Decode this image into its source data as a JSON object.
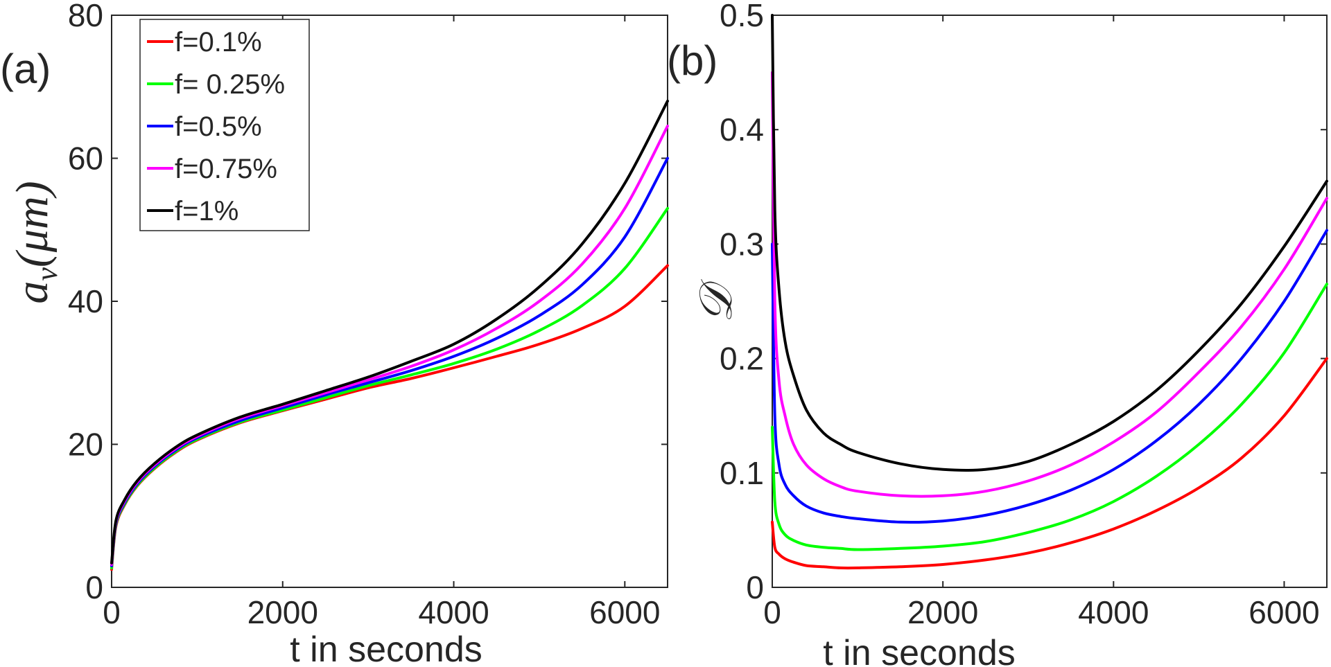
{
  "chart_data": [
    {
      "type": "line",
      "panel_label": "(a)",
      "xlabel": "t in seconds",
      "ylabel_symbol": "a",
      "ylabel_subscript": "v",
      "ylabel_unit": "(μm)",
      "xlim": [
        0,
        6500
      ],
      "ylim": [
        0,
        80
      ],
      "xticks": [
        0,
        2000,
        4000,
        6000
      ],
      "yticks": [
        0,
        20,
        40,
        60,
        80
      ],
      "xtick_labels": [
        "0",
        "2000",
        "4000",
        "6000"
      ],
      "ytick_labels": [
        "0",
        "20",
        "40",
        "60",
        "80"
      ],
      "legend": {
        "position": "top-left",
        "entries": [
          "f=0.1%",
          "f= 0.25%",
          "f=0.5%",
          "f=0.75%",
          "f=1%"
        ]
      },
      "x": [
        0,
        50,
        150,
        300,
        500,
        750,
        1000,
        1500,
        2000,
        2500,
        3000,
        3500,
        4000,
        4500,
        5000,
        5500,
        6000,
        6500
      ],
      "series": [
        {
          "name": "f=0.1%",
          "color": "#ff0000",
          "values": [
            2.5,
            8.5,
            11.5,
            14.2,
            16.6,
            18.9,
            20.6,
            23.0,
            24.7,
            26.3,
            27.9,
            29.2,
            30.7,
            32.3,
            34.0,
            36.2,
            39.3,
            45.0
          ]
        },
        {
          "name": "f= 0.25%",
          "color": "#00ff00",
          "values": [
            2.7,
            8.7,
            11.6,
            14.3,
            16.7,
            19.0,
            20.7,
            23.1,
            24.8,
            26.5,
            28.2,
            29.7,
            31.3,
            33.3,
            35.9,
            39.4,
            44.6,
            53.0
          ]
        },
        {
          "name": "f=0.5%",
          "color": "#0000ff",
          "values": [
            3.0,
            8.9,
            11.8,
            14.5,
            16.9,
            19.2,
            20.9,
            23.3,
            25.1,
            26.9,
            28.6,
            30.3,
            32.3,
            34.8,
            38.0,
            42.3,
            49.0,
            60.0
          ]
        },
        {
          "name": "f=0.75%",
          "color": "#ff00ff",
          "values": [
            3.2,
            9.1,
            12.0,
            14.7,
            17.1,
            19.4,
            21.1,
            23.6,
            25.4,
            27.2,
            29.0,
            30.9,
            33.2,
            36.2,
            40.0,
            45.2,
            53.0,
            64.5
          ]
        },
        {
          "name": "f=1%",
          "color": "#000000",
          "values": [
            3.4,
            9.3,
            12.2,
            14.9,
            17.3,
            19.6,
            21.3,
            23.8,
            25.6,
            27.5,
            29.4,
            31.6,
            34.0,
            37.5,
            42.0,
            48.0,
            56.5,
            68.0
          ]
        }
      ]
    },
    {
      "type": "line",
      "panel_label": "(b)",
      "xlabel": "t in seconds",
      "ylabel_symbol": "𝒟",
      "xlim": [
        0,
        6500
      ],
      "ylim": [
        0,
        0.5
      ],
      "xticks": [
        0,
        2000,
        4000,
        6000
      ],
      "yticks": [
        0,
        0.1,
        0.2,
        0.3,
        0.4,
        0.5
      ],
      "xtick_labels": [
        "0",
        "2000",
        "4000",
        "6000"
      ],
      "ytick_labels": [
        "0",
        "0.1",
        "0.2",
        "0.3",
        "0.4",
        "0.5"
      ],
      "x": [
        0,
        30,
        80,
        150,
        250,
        400,
        600,
        800,
        1000,
        1500,
        2000,
        2500,
        3000,
        3500,
        4000,
        4500,
        5000,
        5500,
        6000,
        6500
      ],
      "series": [
        {
          "name": "f=0.1%",
          "color": "#ff0000",
          "values": [
            0.057,
            0.035,
            0.029,
            0.025,
            0.022,
            0.019,
            0.018,
            0.017,
            0.017,
            0.018,
            0.02,
            0.024,
            0.03,
            0.039,
            0.051,
            0.067,
            0.087,
            0.113,
            0.15,
            0.2
          ]
        },
        {
          "name": "f= 0.25%",
          "color": "#00ff00",
          "values": [
            0.14,
            0.075,
            0.055,
            0.046,
            0.041,
            0.037,
            0.035,
            0.034,
            0.033,
            0.034,
            0.036,
            0.04,
            0.048,
            0.059,
            0.075,
            0.097,
            0.125,
            0.16,
            0.205,
            0.265
          ]
        },
        {
          "name": "f=0.5%",
          "color": "#0000ff",
          "values": [
            0.3,
            0.15,
            0.107,
            0.09,
            0.08,
            0.071,
            0.065,
            0.062,
            0.06,
            0.057,
            0.058,
            0.063,
            0.072,
            0.085,
            0.103,
            0.128,
            0.16,
            0.2,
            0.25,
            0.312
          ]
        },
        {
          "name": "f=0.75%",
          "color": "#ff00ff",
          "values": [
            0.45,
            0.25,
            0.18,
            0.15,
            0.125,
            0.107,
            0.095,
            0.088,
            0.084,
            0.08,
            0.08,
            0.084,
            0.093,
            0.107,
            0.127,
            0.153,
            0.188,
            0.228,
            0.278,
            0.34
          ]
        },
        {
          "name": "f=1%",
          "color": "#000000",
          "values": [
            0.5,
            0.33,
            0.26,
            0.215,
            0.185,
            0.155,
            0.135,
            0.125,
            0.118,
            0.108,
            0.103,
            0.103,
            0.11,
            0.125,
            0.145,
            0.172,
            0.207,
            0.248,
            0.298,
            0.355
          ]
        }
      ]
    }
  ]
}
